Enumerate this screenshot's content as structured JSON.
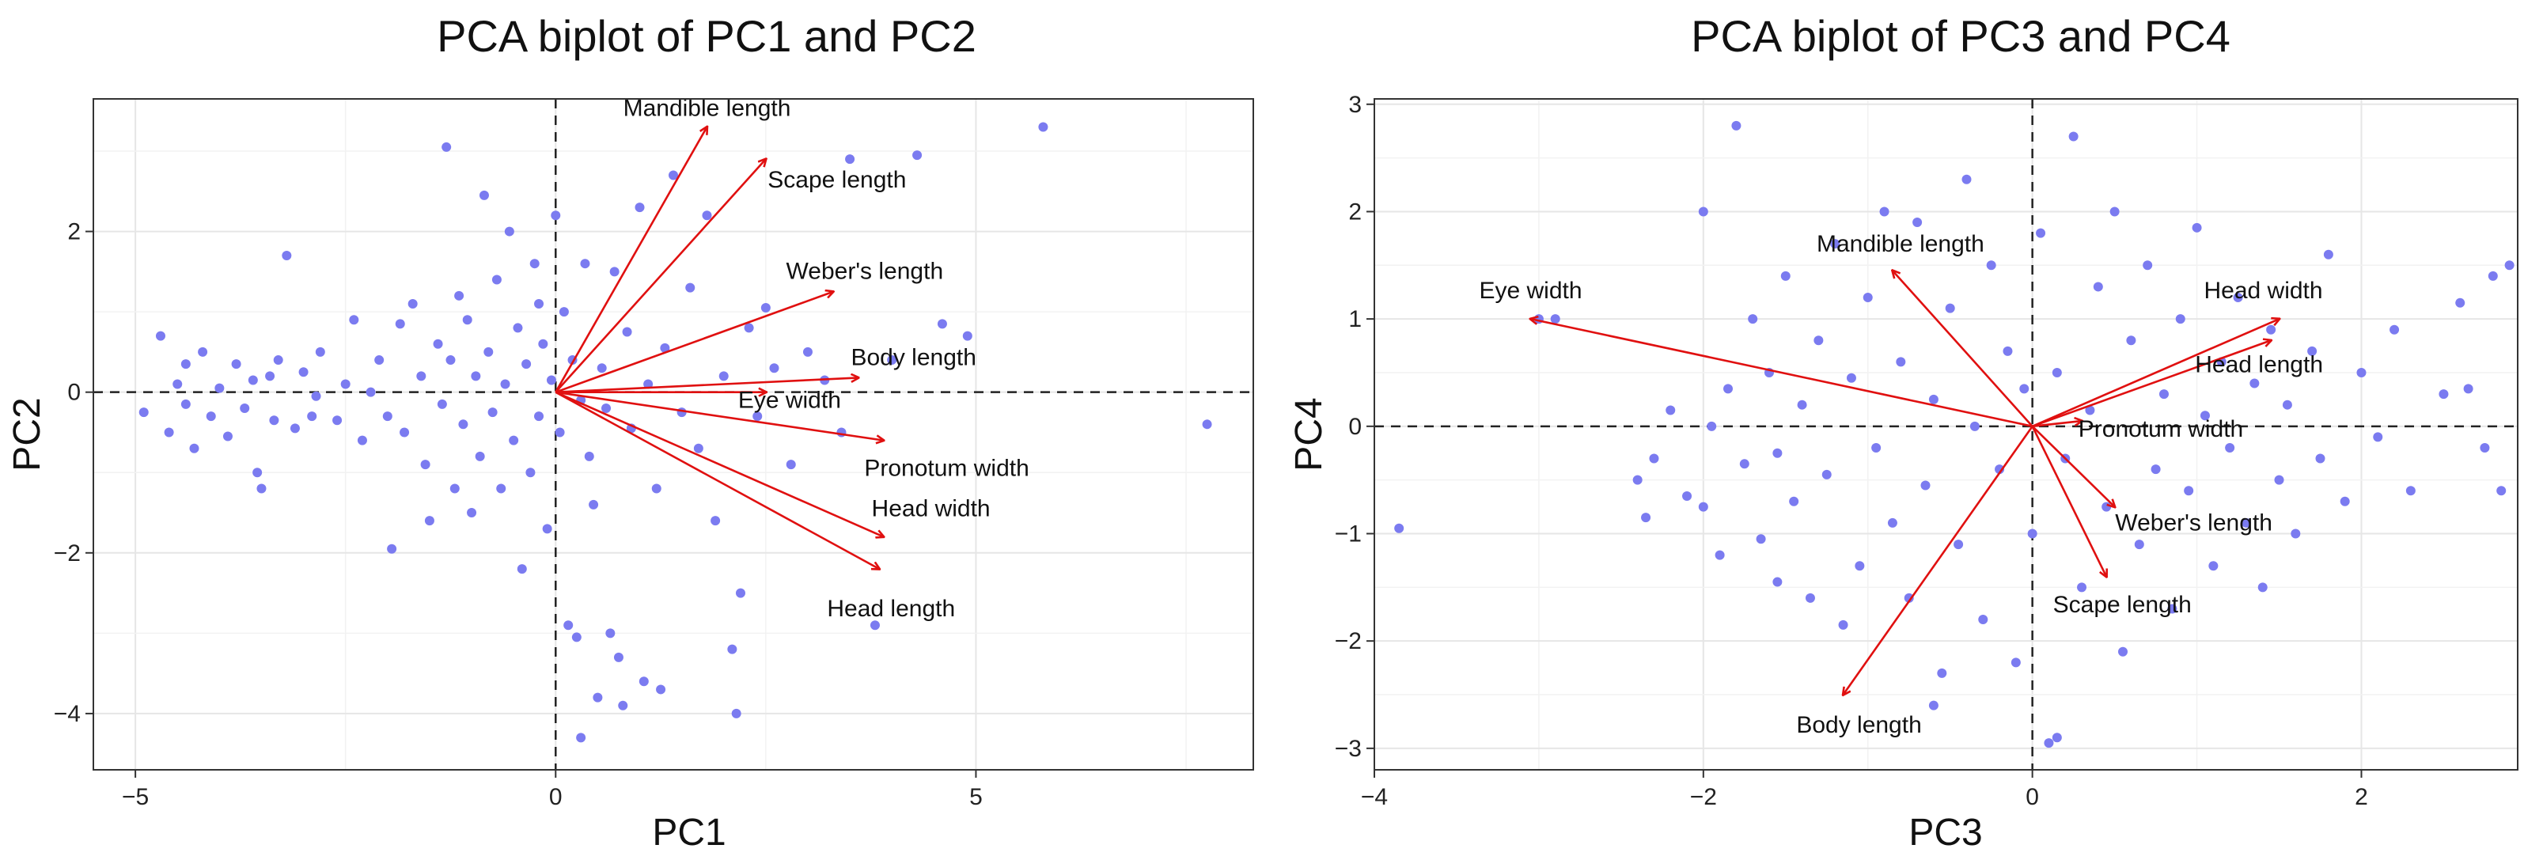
{
  "chart_data": [
    {
      "type": "scatter",
      "title": "PCA biplot of PC1 and PC2",
      "xlabel": "PC1",
      "ylabel": "PC2",
      "xlim": [
        -5.5,
        8.3
      ],
      "ylim": [
        -4.7,
        3.65
      ],
      "xticks": [
        -5,
        0,
        5
      ],
      "yticks": [
        -4,
        -2,
        0,
        2
      ],
      "tick_labels_x": [
        "−5",
        "0",
        "5"
      ],
      "tick_labels_y": [
        "−4",
        "−2",
        "0",
        "2"
      ],
      "loadings": [
        {
          "name": "Mandible length",
          "x": 1.8,
          "y": 3.3
        },
        {
          "name": "Scape length",
          "x": 2.5,
          "y": 2.9
        },
        {
          "name": "Weber's length",
          "x": 3.3,
          "y": 1.25
        },
        {
          "name": "Body length",
          "x": 3.6,
          "y": 0.18
        },
        {
          "name": "Eye width",
          "x": 2.5,
          "y": 0.0
        },
        {
          "name": "Pronotum width",
          "x": 3.9,
          "y": -0.6
        },
        {
          "name": "Head width",
          "x": 3.9,
          "y": -1.8
        },
        {
          "name": "Head length",
          "x": 3.85,
          "y": -2.2
        }
      ],
      "points": [
        [
          -4.9,
          -0.25
        ],
        [
          -4.7,
          0.7
        ],
        [
          -4.6,
          -0.5
        ],
        [
          -4.5,
          0.1
        ],
        [
          -4.4,
          -0.15
        ],
        [
          -4.4,
          0.35
        ],
        [
          -4.3,
          -0.7
        ],
        [
          -4.2,
          0.5
        ],
        [
          -4.1,
          -0.3
        ],
        [
          -4.0,
          0.05
        ],
        [
          -3.9,
          -0.55
        ],
        [
          -3.8,
          0.35
        ],
        [
          -3.7,
          -0.2
        ],
        [
          -3.6,
          0.15
        ],
        [
          -3.55,
          -1.0
        ],
        [
          -3.5,
          -1.2
        ],
        [
          -3.4,
          0.2
        ],
        [
          -3.35,
          -0.35
        ],
        [
          -3.3,
          0.4
        ],
        [
          -3.2,
          1.7
        ],
        [
          -3.1,
          -0.45
        ],
        [
          -3.0,
          0.25
        ],
        [
          -2.9,
          -0.3
        ],
        [
          -2.85,
          -0.05
        ],
        [
          -2.8,
          0.5
        ],
        [
          -2.6,
          -0.35
        ],
        [
          -2.5,
          0.1
        ],
        [
          -2.4,
          0.9
        ],
        [
          -2.3,
          -0.6
        ],
        [
          -2.2,
          0.0
        ],
        [
          -2.1,
          0.4
        ],
        [
          -2.0,
          -0.3
        ],
        [
          -1.95,
          -1.95
        ],
        [
          -1.85,
          0.85
        ],
        [
          -1.8,
          -0.5
        ],
        [
          -1.7,
          1.1
        ],
        [
          -1.6,
          0.2
        ],
        [
          -1.55,
          -0.9
        ],
        [
          -1.5,
          -1.6
        ],
        [
          -1.4,
          0.6
        ],
        [
          -1.35,
          -0.15
        ],
        [
          -1.3,
          3.05
        ],
        [
          -1.25,
          0.4
        ],
        [
          -1.2,
          -1.2
        ],
        [
          -1.15,
          1.2
        ],
        [
          -1.1,
          -0.4
        ],
        [
          -1.05,
          0.9
        ],
        [
          -1.0,
          -1.5
        ],
        [
          -0.95,
          0.2
        ],
        [
          -0.9,
          -0.8
        ],
        [
          -0.85,
          2.45
        ],
        [
          -0.8,
          0.5
        ],
        [
          -0.75,
          -0.25
        ],
        [
          -0.7,
          1.4
        ],
        [
          -0.65,
          -1.2
        ],
        [
          -0.6,
          0.1
        ],
        [
          -0.55,
          2.0
        ],
        [
          -0.5,
          -0.6
        ],
        [
          -0.45,
          0.8
        ],
        [
          -0.4,
          -2.2
        ],
        [
          -0.35,
          0.35
        ],
        [
          -0.3,
          -1.0
        ],
        [
          -0.25,
          1.6
        ],
        [
          -0.2,
          -0.3
        ],
        [
          -0.15,
          0.6
        ],
        [
          -0.1,
          -1.7
        ],
        [
          -0.05,
          0.15
        ],
        [
          0.0,
          2.2
        ],
        [
          0.05,
          -0.5
        ],
        [
          0.1,
          1.0
        ],
        [
          0.15,
          -2.9
        ],
        [
          0.2,
          0.4
        ],
        [
          0.25,
          -3.05
        ],
        [
          0.3,
          -4.3
        ],
        [
          0.35,
          1.6
        ],
        [
          0.4,
          -0.8
        ],
        [
          0.45,
          -1.4
        ],
        [
          0.5,
          -3.8
        ],
        [
          0.55,
          0.3
        ],
        [
          0.6,
          -0.2
        ],
        [
          0.65,
          -3.0
        ],
        [
          0.7,
          1.5
        ],
        [
          0.75,
          -3.3
        ],
        [
          0.8,
          -3.9
        ],
        [
          0.85,
          0.75
        ],
        [
          0.9,
          -0.45
        ],
        [
          1.0,
          2.3
        ],
        [
          1.05,
          -3.6
        ],
        [
          1.1,
          0.1
        ],
        [
          1.2,
          -1.2
        ],
        [
          1.25,
          -3.7
        ],
        [
          1.3,
          0.55
        ],
        [
          1.4,
          2.7
        ],
        [
          1.5,
          -0.25
        ],
        [
          1.6,
          1.3
        ],
        [
          1.7,
          -0.7
        ],
        [
          1.8,
          2.2
        ],
        [
          1.9,
          -1.6
        ],
        [
          2.0,
          0.2
        ],
        [
          2.1,
          -3.2
        ],
        [
          2.15,
          -4.0
        ],
        [
          2.2,
          -2.5
        ],
        [
          2.3,
          0.8
        ],
        [
          2.4,
          -0.3
        ],
        [
          2.5,
          1.05
        ],
        [
          2.6,
          0.3
        ],
        [
          2.8,
          -0.9
        ],
        [
          3.0,
          0.5
        ],
        [
          3.2,
          0.15
        ],
        [
          3.4,
          -0.5
        ],
        [
          3.5,
          2.9
        ],
        [
          3.8,
          -2.9
        ],
        [
          4.0,
          0.4
        ],
        [
          4.3,
          2.95
        ],
        [
          4.6,
          0.85
        ],
        [
          4.9,
          0.7
        ],
        [
          5.8,
          3.3
        ],
        [
          7.75,
          -0.4
        ],
        [
          -0.2,
          1.1
        ],
        [
          0.3,
          -0.1
        ]
      ]
    },
    {
      "type": "scatter",
      "title": "PCA biplot of PC3 and PC4",
      "xlabel": "PC3",
      "ylabel": "PC4",
      "xlim": [
        -4.0,
        2.95
      ],
      "ylim": [
        -3.2,
        3.05
      ],
      "xticks": [
        -4,
        -2,
        0,
        2
      ],
      "yticks": [
        -3,
        -2,
        -1,
        0,
        1,
        2,
        3
      ],
      "tick_labels_x": [
        "−4",
        "−2",
        "0",
        "2"
      ],
      "tick_labels_y": [
        "−3",
        "−2",
        "−1",
        "0",
        "1",
        "2",
        "3"
      ],
      "loadings": [
        {
          "name": "Mandible length",
          "x": -0.85,
          "y": 1.45
        },
        {
          "name": "Eye width",
          "x": -3.05,
          "y": 1.0
        },
        {
          "name": "Head width",
          "x": 1.5,
          "y": 1.0
        },
        {
          "name": "Head length",
          "x": 1.45,
          "y": 0.8
        },
        {
          "name": "Pronotum width",
          "x": 0.3,
          "y": 0.05
        },
        {
          "name": "Weber's length",
          "x": 0.5,
          "y": -0.75
        },
        {
          "name": "Scape length",
          "x": 0.45,
          "y": -1.4
        },
        {
          "name": "Body length",
          "x": -1.15,
          "y": -2.5
        }
      ],
      "points": [
        [
          -3.85,
          -0.95
        ],
        [
          -3.0,
          1.0
        ],
        [
          -2.9,
          1.0
        ],
        [
          -2.4,
          -0.5
        ],
        [
          -2.35,
          -0.85
        ],
        [
          -2.3,
          -0.3
        ],
        [
          -2.2,
          0.15
        ],
        [
          -2.1,
          -0.65
        ],
        [
          -2.0,
          -0.75
        ],
        [
          -1.95,
          0.0
        ],
        [
          -1.9,
          -1.2
        ],
        [
          -1.85,
          0.35
        ],
        [
          -1.8,
          2.8
        ],
        [
          -1.75,
          -0.35
        ],
        [
          -1.7,
          1.0
        ],
        [
          -1.65,
          -1.05
        ],
        [
          -1.6,
          0.5
        ],
        [
          -1.55,
          -0.25
        ],
        [
          -1.5,
          1.4
        ],
        [
          -1.45,
          -0.7
        ],
        [
          -1.4,
          0.2
        ],
        [
          -1.35,
          -1.6
        ],
        [
          -1.3,
          0.8
        ],
        [
          -1.25,
          -0.45
        ],
        [
          -1.2,
          1.7
        ],
        [
          -1.15,
          -1.85
        ],
        [
          -1.1,
          0.45
        ],
        [
          -1.05,
          -1.3
        ],
        [
          -1.0,
          1.2
        ],
        [
          -0.95,
          -0.2
        ],
        [
          -0.9,
          2.0
        ],
        [
          -0.85,
          -0.9
        ],
        [
          -0.8,
          0.6
        ],
        [
          -0.75,
          -1.6
        ],
        [
          -0.7,
          1.9
        ],
        [
          -0.65,
          -0.55
        ],
        [
          -0.6,
          0.25
        ],
        [
          -0.55,
          -2.3
        ],
        [
          -0.5,
          1.1
        ],
        [
          -0.45,
          -1.1
        ],
        [
          -0.4,
          2.3
        ],
        [
          -0.35,
          0.0
        ],
        [
          -0.3,
          -1.8
        ],
        [
          -0.25,
          1.5
        ],
        [
          -0.2,
          -0.4
        ],
        [
          -0.15,
          0.7
        ],
        [
          -0.1,
          -2.2
        ],
        [
          -0.05,
          0.35
        ],
        [
          0.0,
          -1.0
        ],
        [
          0.05,
          1.8
        ],
        [
          0.1,
          -2.95
        ],
        [
          0.15,
          0.5
        ],
        [
          0.2,
          -0.3
        ],
        [
          0.25,
          2.7
        ],
        [
          0.3,
          -1.5
        ],
        [
          0.35,
          0.15
        ],
        [
          0.4,
          1.3
        ],
        [
          0.45,
          -0.75
        ],
        [
          0.5,
          2.0
        ],
        [
          0.55,
          -2.1
        ],
        [
          0.6,
          0.8
        ],
        [
          0.65,
          -1.1
        ],
        [
          0.7,
          1.5
        ],
        [
          0.75,
          -0.4
        ],
        [
          0.8,
          0.3
        ],
        [
          0.85,
          -1.7
        ],
        [
          0.9,
          1.0
        ],
        [
          0.95,
          -0.6
        ],
        [
          1.0,
          1.85
        ],
        [
          1.05,
          0.1
        ],
        [
          1.1,
          -1.3
        ],
        [
          1.15,
          0.6
        ],
        [
          1.2,
          -0.2
        ],
        [
          1.25,
          1.2
        ],
        [
          1.3,
          -0.9
        ],
        [
          1.35,
          0.4
        ],
        [
          1.4,
          -1.5
        ],
        [
          1.45,
          0.9
        ],
        [
          1.5,
          -0.5
        ],
        [
          1.55,
          0.2
        ],
        [
          1.6,
          -1.0
        ],
        [
          1.7,
          0.7
        ],
        [
          1.75,
          -0.3
        ],
        [
          1.8,
          1.6
        ],
        [
          1.9,
          -0.7
        ],
        [
          2.0,
          0.5
        ],
        [
          2.1,
          -0.1
        ],
        [
          2.2,
          0.9
        ],
        [
          2.3,
          -0.6
        ],
        [
          2.5,
          0.3
        ],
        [
          2.6,
          1.15
        ],
        [
          2.65,
          0.35
        ],
        [
          2.75,
          -0.2
        ],
        [
          2.8,
          1.4
        ],
        [
          2.85,
          -0.6
        ],
        [
          2.9,
          1.5
        ],
        [
          -2.0,
          2.0
        ],
        [
          -1.55,
          -1.45
        ],
        [
          -0.6,
          -2.6
        ],
        [
          0.15,
          -2.9
        ]
      ]
    }
  ]
}
